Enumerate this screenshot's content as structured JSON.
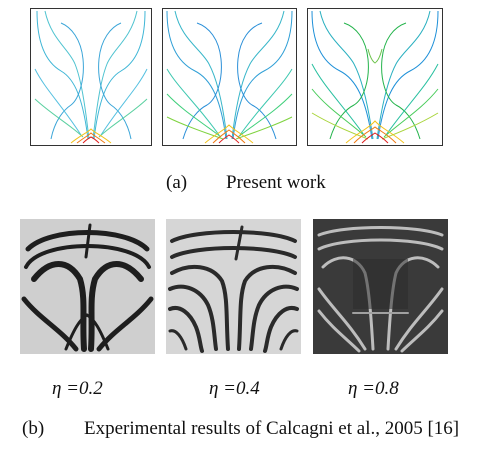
{
  "figure": {
    "caption_a": {
      "label": "(a)",
      "text": "Present work"
    },
    "caption_b": {
      "label": "(b)",
      "text": "Experimental results of Calcagni et al., 2005 [16]"
    },
    "eta_labels": [
      "η =0.2",
      "η =0.4",
      "η =0.8"
    ]
  },
  "colors": {
    "contour_cool": "#2aa6c9",
    "contour_green": "#22b34a",
    "contour_hot": "#e02020",
    "fringe_dark": "#1e1e1e",
    "fringe_light": "#d4d4d4"
  }
}
